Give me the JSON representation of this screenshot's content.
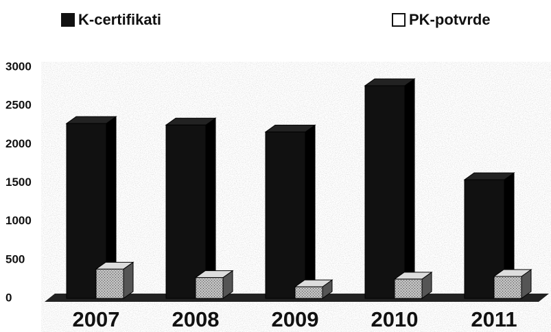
{
  "chart_data": {
    "type": "bar",
    "categories": [
      "2007",
      "2008",
      "2009",
      "2010",
      "2011"
    ],
    "series": [
      {
        "name": "K-certifikati",
        "color": "#111111",
        "values": [
          2270,
          2250,
          2160,
          2760,
          1540
        ]
      },
      {
        "name": "PK-potvrde",
        "color": "#9a9a9a",
        "values": [
          380,
          270,
          150,
          250,
          285
        ]
      }
    ],
    "ylim": [
      0,
      3000
    ],
    "yticks": [
      0,
      500,
      1000,
      1500,
      2000,
      2500,
      3000
    ]
  }
}
